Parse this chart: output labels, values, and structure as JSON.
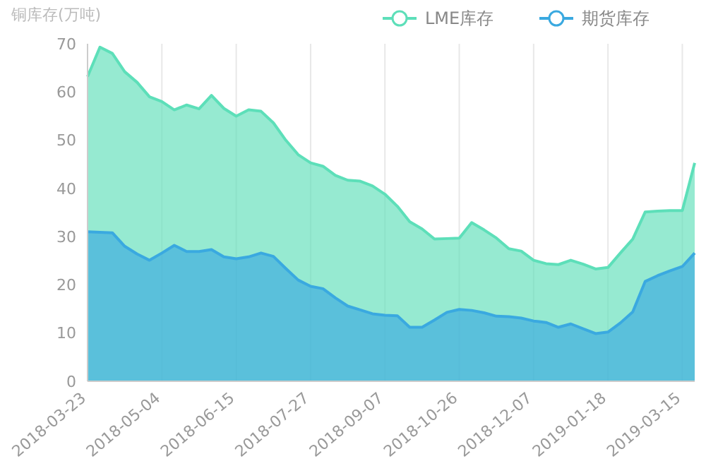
{
  "chart_data": {
    "type": "area",
    "ylabel": "铜库存(万吨)",
    "categories": [
      "2018-03-23",
      null,
      null,
      null,
      null,
      null,
      "2018-05-04",
      null,
      null,
      null,
      null,
      null,
      "2018-06-15",
      null,
      null,
      null,
      null,
      null,
      "2018-07-27",
      null,
      null,
      null,
      null,
      null,
      "2018-09-07",
      null,
      null,
      null,
      null,
      null,
      "2018-10-26",
      null,
      null,
      null,
      null,
      null,
      "2018-12-07",
      null,
      null,
      null,
      null,
      null,
      "2019-01-18",
      null,
      null,
      null,
      null,
      null,
      "2019-03-15",
      null
    ],
    "series": [
      {
        "name": "LME库存",
        "color": "#5ddfb9",
        "values": [
          63.2,
          69.3,
          68,
          64.2,
          62,
          59,
          58,
          56.3,
          57.3,
          56.5,
          59.3,
          56.6,
          55,
          56.3,
          56,
          53.6,
          50,
          47,
          45.3,
          44.6,
          42.7,
          41.7,
          41.5,
          40.5,
          38.8,
          36.3,
          33.1,
          31.6,
          29.5,
          29.6,
          29.7,
          32.9,
          31.4,
          29.7,
          27.5,
          27,
          25.1,
          24.4,
          24.2,
          25.1,
          24.3,
          23.3,
          23.6,
          26.6,
          29.5,
          35.1,
          35.3,
          35.4,
          35.4,
          45.3
        ]
      },
      {
        "name": "期货库存",
        "color": "#3aa9e0",
        "values": [
          31,
          30.9,
          30.8,
          28,
          26.4,
          25.1,
          26.6,
          28.2,
          26.9,
          26.9,
          27.3,
          25.8,
          25.4,
          25.8,
          26.6,
          25.9,
          23.4,
          21,
          19.7,
          19.2,
          17.3,
          15.6,
          14.8,
          14,
          13.7,
          13.6,
          11.2,
          11.2,
          12.7,
          14.3,
          14.9,
          14.7,
          14.2,
          13.5,
          13.4,
          13.1,
          12.5,
          12.2,
          11.2,
          11.9,
          10.9,
          9.9,
          10.2,
          12.1,
          14.4,
          20.7,
          21.9,
          22.9,
          23.8,
          26.6
        ]
      }
    ],
    "ylim": [
      0,
      70
    ],
    "yticks": [
      0,
      10,
      20,
      30,
      40,
      50,
      60,
      70
    ],
    "grid": "x",
    "legend": "top right"
  }
}
